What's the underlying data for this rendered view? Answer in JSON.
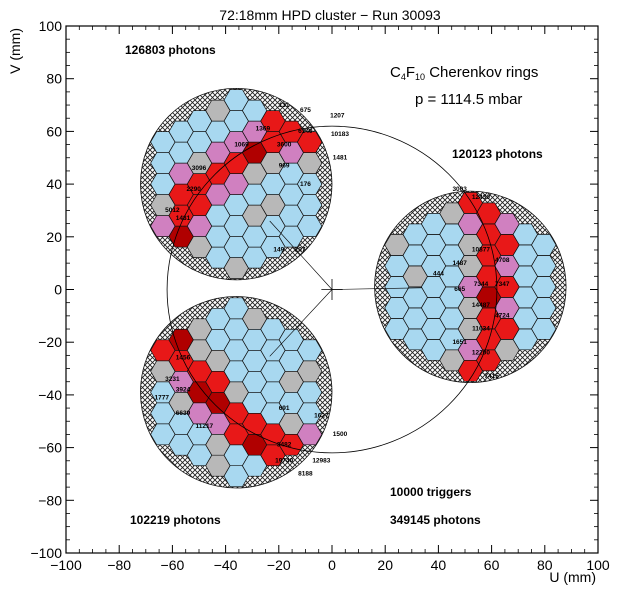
{
  "chart_data": {
    "type": "scatter",
    "title": "72:18mm HPD cluster − Run 30093",
    "xlabel": "U (mm)",
    "ylabel": "V (mm)",
    "xlim": [
      -100,
      100
    ],
    "ylim": [
      -100,
      100
    ],
    "xticks": [
      "−100",
      "−80",
      "−60",
      "−40",
      "−20",
      "0",
      "20",
      "40",
      "60",
      "80",
      "100"
    ],
    "yticks": [
      "−100",
      "−80",
      "−60",
      "−40",
      "−20",
      "0",
      "20",
      "40",
      "60",
      "80",
      "100"
    ],
    "grid": false,
    "annotations": {
      "photons_top": "126803 photons",
      "photons_right": "120123 photons",
      "photons_bottom": "102219 photons",
      "photons_total": "349145 photons",
      "triggers": "10000 triggers",
      "gas_main": "C",
      "gas_sub1": "4",
      "gas_mid": "F",
      "gas_sub2": "10",
      "gas_rest": " Cherenkov rings",
      "pressure": "p = 1114.5 mbar"
    },
    "hpds": [
      {
        "name": "top-left HPD",
        "center": [
          -36,
          40
        ],
        "radius": 36
      },
      {
        "name": "right HPD",
        "center": [
          52,
          1
        ],
        "radius": 36
      },
      {
        "name": "bottom-left HPD",
        "center": [
          -36,
          -39
        ],
        "radius": 36
      }
    ],
    "rings": [
      {
        "center": [
          0,
          0
        ],
        "radius": 62
      }
    ],
    "colors": {
      "low": "#a8d8f0",
      "grey": "#b8b8b8",
      "mid": "#d080c0",
      "high": "#e81818",
      "dark": "#b00000",
      "hatch": "#222222"
    },
    "pixel_labels": [
      {
        "text": "131",
        "u": -18,
        "v": 70
      },
      {
        "text": "675",
        "u": -10,
        "v": 68
      },
      {
        "text": "1207",
        "u": 2,
        "v": 66
      },
      {
        "text": "6140",
        "u": -10,
        "v": 60
      },
      {
        "text": "10183",
        "u": 3,
        "v": 59
      },
      {
        "text": "1369",
        "u": -26,
        "v": 61
      },
      {
        "text": "3600",
        "u": -18,
        "v": 55
      },
      {
        "text": "1481",
        "u": 3,
        "v": 50
      },
      {
        "text": "3096",
        "u": -50,
        "v": 46
      },
      {
        "text": "2290",
        "u": -52,
        "v": 38
      },
      {
        "text": "5012",
        "u": -60,
        "v": 30
      },
      {
        "text": "1481",
        "u": -56,
        "v": 27
      },
      {
        "text": "1069",
        "u": -34,
        "v": 55
      },
      {
        "text": "969",
        "u": -18,
        "v": 47
      },
      {
        "text": "176",
        "u": -10,
        "v": 40
      },
      {
        "text": "149",
        "u": -20,
        "v": 15
      },
      {
        "text": "207",
        "u": -12,
        "v": 15
      },
      {
        "text": "3003",
        "u": 48,
        "v": 38
      },
      {
        "text": "12430",
        "u": 56,
        "v": 35
      },
      {
        "text": "10877",
        "u": 56,
        "v": 15
      },
      {
        "text": "7344",
        "u": 56,
        "v": 2
      },
      {
        "text": "7347",
        "u": 64,
        "v": 2
      },
      {
        "text": "4708",
        "u": 64,
        "v": 11
      },
      {
        "text": "14487",
        "u": 56,
        "v": -6
      },
      {
        "text": "4724",
        "u": 64,
        "v": -10
      },
      {
        "text": "11634",
        "u": 56,
        "v": -15
      },
      {
        "text": "12200",
        "u": 56,
        "v": -24
      },
      {
        "text": "7415",
        "u": 60,
        "v": -33
      },
      {
        "text": "1487",
        "u": 48,
        "v": 10
      },
      {
        "text": "665",
        "u": 48,
        "v": 0
      },
      {
        "text": "444",
        "u": 40,
        "v": 6
      },
      {
        "text": "1651",
        "u": 48,
        "v": -20
      },
      {
        "text": "1456",
        "u": -56,
        "v": -26
      },
      {
        "text": "3231",
        "u": -60,
        "v": -34
      },
      {
        "text": "1777",
        "u": -64,
        "v": -41
      },
      {
        "text": "3924",
        "u": -56,
        "v": -38
      },
      {
        "text": "6639",
        "u": -56,
        "v": -47
      },
      {
        "text": "11217",
        "u": -48,
        "v": -52
      },
      {
        "text": "3482",
        "u": -18,
        "v": -59
      },
      {
        "text": "19740",
        "u": -18,
        "v": -65
      },
      {
        "text": "12983",
        "u": -4,
        "v": -65
      },
      {
        "text": "8188",
        "u": -10,
        "v": -70
      },
      {
        "text": "1627",
        "u": -4,
        "v": -48
      },
      {
        "text": "691",
        "u": -18,
        "v": -45
      },
      {
        "text": "1500",
        "u": 3,
        "v": -55
      }
    ]
  }
}
